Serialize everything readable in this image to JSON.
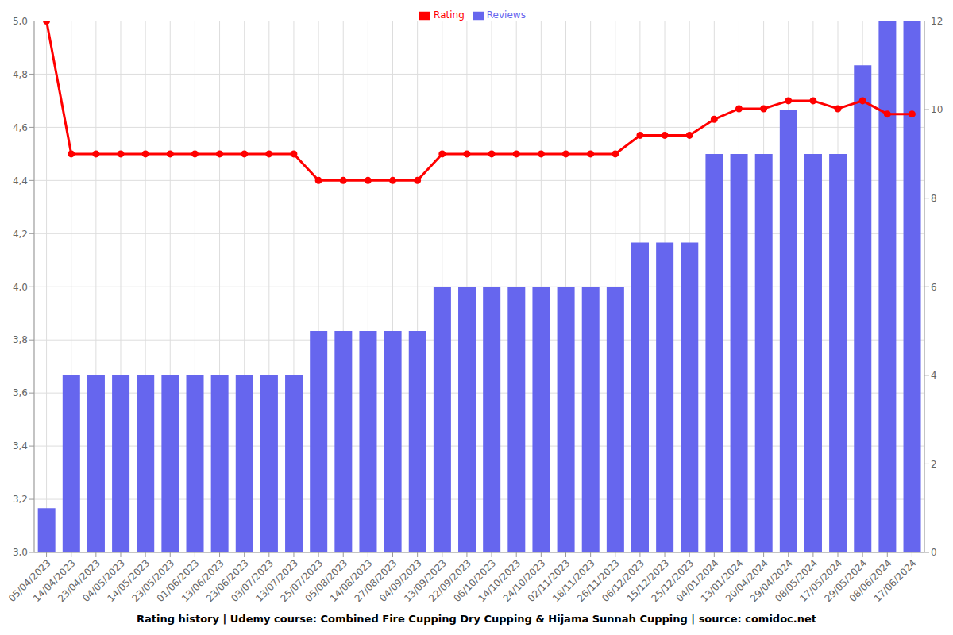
{
  "chart_data": {
    "type": "bar",
    "title": "Rating history | Udemy course: Combined Fire Cupping Dry Cupping & Hijama Sunnah Cupping | source: comidoc.net",
    "categories": [
      "05/04/2023",
      "14/04/2023",
      "23/04/2023",
      "04/05/2023",
      "14/05/2023",
      "23/05/2023",
      "01/06/2023",
      "13/06/2023",
      "23/06/2023",
      "03/07/2023",
      "13/07/2023",
      "25/07/2023",
      "05/08/2023",
      "14/08/2023",
      "27/08/2023",
      "04/09/2023",
      "13/09/2023",
      "22/09/2023",
      "06/10/2023",
      "14/10/2023",
      "24/10/2023",
      "02/11/2023",
      "18/11/2023",
      "26/11/2023",
      "06/12/2023",
      "15/12/2023",
      "25/12/2023",
      "04/01/2024",
      "13/01/2024",
      "20/04/2024",
      "29/04/2024",
      "08/05/2024",
      "17/05/2024",
      "29/05/2024",
      "08/06/2024",
      "17/06/2024"
    ],
    "series": [
      {
        "name": "Rating",
        "type": "line",
        "color": "#ff0000",
        "marker": "circle",
        "values": [
          5.0,
          4.5,
          4.5,
          4.5,
          4.5,
          4.5,
          4.5,
          4.5,
          4.5,
          4.5,
          4.5,
          4.4,
          4.4,
          4.4,
          4.4,
          4.4,
          4.5,
          4.5,
          4.5,
          4.5,
          4.5,
          4.5,
          4.5,
          4.5,
          4.57,
          4.57,
          4.57,
          4.63,
          4.67,
          4.67,
          4.7,
          4.7,
          4.67,
          4.7,
          4.65,
          4.65
        ]
      },
      {
        "name": "Reviews",
        "type": "bar",
        "color": "#6666ee",
        "axis": "y2",
        "values": [
          1,
          4,
          4,
          4,
          4,
          4,
          4,
          4,
          4,
          4,
          4,
          5,
          5,
          5,
          5,
          5,
          6,
          6,
          6,
          6,
          6,
          6,
          6,
          6,
          7,
          7,
          7,
          9,
          9,
          9,
          10,
          9,
          9,
          11,
          12,
          12
        ]
      }
    ],
    "ylim": [
      3,
      5
    ],
    "yticks": [
      {
        "value": 3,
        "label": "3,0"
      },
      {
        "value": 3.2,
        "label": "3,2"
      },
      {
        "value": 3.4,
        "label": "3,4"
      },
      {
        "value": 3.6,
        "label": "3,6"
      },
      {
        "value": 3.8,
        "label": "3,8"
      },
      {
        "value": 4,
        "label": "4,0"
      },
      {
        "value": 4.2,
        "label": "4,2"
      },
      {
        "value": 4.4,
        "label": "4,4"
      },
      {
        "value": 4.6,
        "label": "4,6"
      },
      {
        "value": 4.8,
        "label": "4,8"
      },
      {
        "value": 5,
        "label": "5,0"
      }
    ],
    "y2lim": [
      0,
      12
    ],
    "y2ticks": [
      0,
      2,
      4,
      6,
      8,
      10,
      12
    ],
    "grid": true,
    "legend": "top"
  }
}
